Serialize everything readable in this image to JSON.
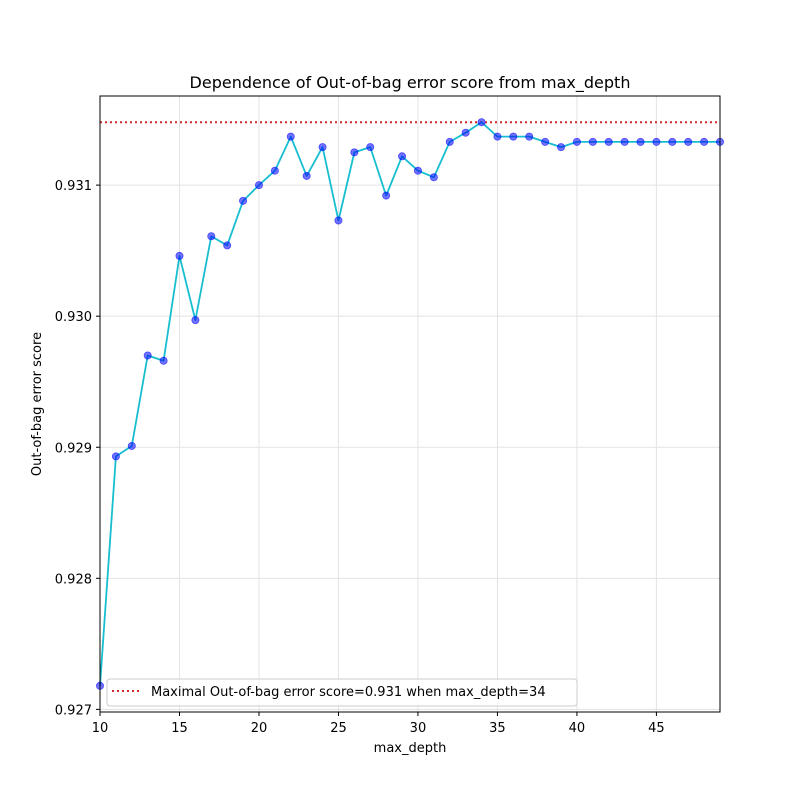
{
  "chart_data": {
    "type": "line",
    "title": "Dependence of Out-of-bag error score from max_depth",
    "xlabel": "max_depth",
    "ylabel": "Out-of-bag error score",
    "xlim": [
      10,
      49
    ],
    "ylim": [
      0.92698,
      0.93168
    ],
    "xticks": [
      10,
      15,
      20,
      25,
      30,
      35,
      40,
      45
    ],
    "xtick_labels": [
      "10",
      "15",
      "20",
      "25",
      "30",
      "35",
      "40",
      "45"
    ],
    "yticks": [
      0.927,
      0.928,
      0.929,
      0.93,
      0.931
    ],
    "ytick_labels": [
      "0.927",
      "0.928",
      "0.929",
      "0.930",
      "0.931"
    ],
    "grid": true,
    "legend_position": "lower-left",
    "series": [
      {
        "x": [
          10,
          11,
          12,
          13,
          14,
          15,
          16,
          17,
          18,
          19,
          20,
          21,
          22,
          23,
          24,
          25,
          26,
          27,
          28,
          29,
          30,
          31,
          32,
          33,
          34,
          35,
          36,
          37,
          38,
          39,
          40,
          41,
          42,
          43,
          44,
          45,
          46,
          47,
          48,
          49
        ],
        "values": [
          0.92718,
          0.92893,
          0.92901,
          0.9297,
          0.92966,
          0.93046,
          0.92997,
          0.93061,
          0.93054,
          0.93088,
          0.931,
          0.93111,
          0.93137,
          0.93107,
          0.93129,
          0.93073,
          0.93125,
          0.93129,
          0.93092,
          0.93122,
          0.93111,
          0.93106,
          0.93133,
          0.9314,
          0.93148,
          0.93137,
          0.93137,
          0.93137,
          0.93133,
          0.93129,
          0.93133,
          0.93133,
          0.93133,
          0.93133,
          0.93133,
          0.93133,
          0.93133,
          0.93133,
          0.93133,
          0.93133
        ],
        "line_color": "#17becf",
        "marker_color": "#0000ff"
      }
    ],
    "reference_line": {
      "y": 0.93148,
      "color": "#d62728",
      "style": "dotted",
      "label": "Maximal Out-of-bag error score=0.931 when max_depth=34"
    }
  }
}
